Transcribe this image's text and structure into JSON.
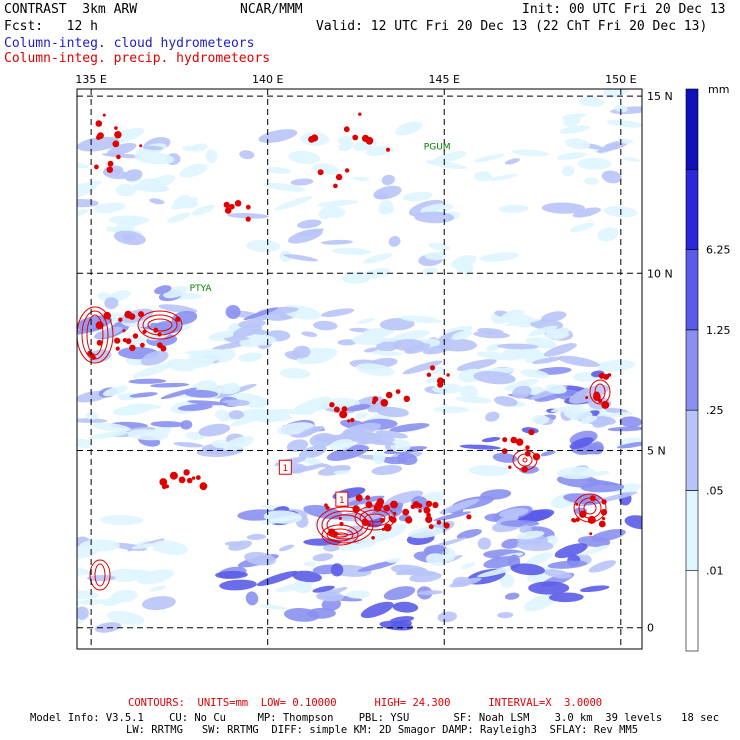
{
  "header": {
    "model": "CONTRAST  3km ARW",
    "org": "NCAR/MMM",
    "init": "Init: 00 UTC Fri 20 Dec 13",
    "fcst": "Fcst:   12 h",
    "valid": "Valid: 12 UTC Fri 20 Dec 13 (22 ChT Fri 20 Dec 13)",
    "field1": "Column-integ. cloud hydrometeors",
    "field2": "Column-integ. precip. hydrometeors",
    "field1_color": "#2020c8",
    "field2_color": "#e00000"
  },
  "chart_data": {
    "type": "heatmap",
    "title": "Column-integ. cloud hydrometeors",
    "overlay": "Column-integ. precip. hydrometeors",
    "x_ticks": [
      "135 E",
      "140 E",
      "145 E",
      "150 E"
    ],
    "y_ticks": [
      "15 N",
      "10 N",
      "5 N",
      "0"
    ],
    "x_tick_values": [
      135,
      140,
      145,
      150
    ],
    "y_tick_values": [
      15,
      10,
      5,
      0
    ],
    "xlim": [
      134.6,
      150.6
    ],
    "ylim": [
      -0.6,
      15.2
    ],
    "grid": true,
    "colorbar": {
      "unit": "mm",
      "levels": [
        0.01,
        0.05,
        0.25,
        1.25,
        6.25
      ],
      "labels": [
        ".01",
        ".05",
        ".25",
        "1.25",
        "6.25"
      ],
      "colors": [
        "#ffffff",
        "#dff5ff",
        "#b8c4f8",
        "#8a90f0",
        "#5a5ce8",
        "#2a28d8",
        "#1010b8"
      ]
    },
    "station_labels": [
      {
        "name": "PGUM",
        "lon": 144.8,
        "lat": 13.5
      },
      {
        "name": "PTYA",
        "lon": 138.1,
        "lat": 9.5
      }
    ],
    "contour_labels": [
      {
        "text": "1",
        "lon": 140.5,
        "lat": 4.5
      },
      {
        "text": "1",
        "lon": 142.1,
        "lat": 3.6
      }
    ]
  },
  "footer": {
    "contours": "CONTOURS:  UNITS=mm  LOW= 0.10000      HIGH= 24.300      INTERVAL=X  3.0000",
    "model_info1": "Model Info: V3.5.1    CU: No Cu     MP: Thompson    PBL: YSU       SF: Noah LSM    3.0 km  39 levels   18 sec",
    "model_info2": "LW: RRTMG   SW: RRTMG  DIFF: simple KM: 2D Smagor DAMP: Rayleigh3  SFLAY: Rev MM5"
  }
}
